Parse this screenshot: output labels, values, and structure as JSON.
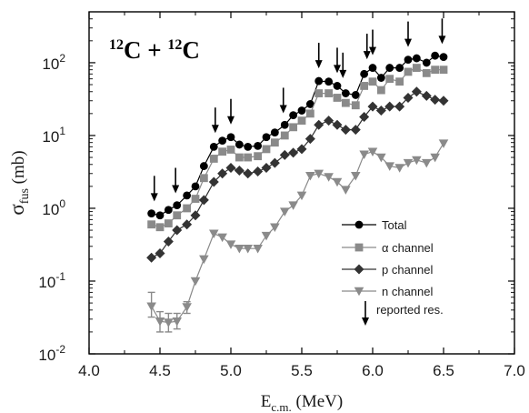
{
  "chart_data": {
    "type": "line",
    "title": "",
    "annotation": {
      "base": "C + ",
      "base2": "C",
      "mass": "12",
      "mass2": "12"
    },
    "xlabel": {
      "main": "E",
      "sub": "c.m.",
      "unit": " (MeV)"
    },
    "ylabel": {
      "main": "σ",
      "sub": "fus",
      "unit": " (mb)"
    },
    "xlim": [
      4.0,
      7.0
    ],
    "ylim": [
      0.01,
      500
    ],
    "yscale": "log",
    "x_ticks": [
      "4.0",
      "4.5",
      "5.0",
      "5.5",
      "6.0",
      "6.5",
      "7.0"
    ],
    "y_ticks": [
      {
        "value": 0.01,
        "base": "10",
        "exp": "-2"
      },
      {
        "value": 0.1,
        "base": "10",
        "exp": "-1"
      },
      {
        "value": 1,
        "base": "10",
        "exp": "0"
      },
      {
        "value": 10,
        "base": "10",
        "exp": "1"
      },
      {
        "value": 100,
        "base": "10",
        "exp": "2"
      }
    ],
    "legend_position": "bottom-right",
    "series": [
      {
        "name": "Total",
        "marker": "circle",
        "color": "#000000",
        "x": [
          4.44,
          4.5,
          4.56,
          4.62,
          4.69,
          4.75,
          4.81,
          4.88,
          4.94,
          5.0,
          5.06,
          5.12,
          5.19,
          5.25,
          5.31,
          5.38,
          5.44,
          5.5,
          5.56,
          5.62,
          5.69,
          5.75,
          5.81,
          5.88,
          5.94,
          6.0,
          6.06,
          6.12,
          6.19,
          6.25,
          6.31,
          6.38,
          6.44,
          6.5
        ],
        "y": [
          0.85,
          0.8,
          0.95,
          1.1,
          1.5,
          2.0,
          3.8,
          7.0,
          8.5,
          9.5,
          7.5,
          7.0,
          7.2,
          9.5,
          11,
          14,
          19,
          22,
          27,
          56,
          55,
          48,
          38,
          36,
          70,
          85,
          62,
          85,
          85,
          110,
          115,
          100,
          125,
          120
        ]
      },
      {
        "name": "α channel",
        "marker": "square",
        "color": "#8a8a8a",
        "x": [
          4.44,
          4.5,
          4.56,
          4.62,
          4.69,
          4.75,
          4.81,
          4.88,
          4.94,
          5.0,
          5.06,
          5.12,
          5.19,
          5.25,
          5.31,
          5.38,
          5.44,
          5.5,
          5.56,
          5.62,
          5.69,
          5.75,
          5.81,
          5.88,
          5.94,
          6.0,
          6.06,
          6.12,
          6.19,
          6.25,
          6.31,
          6.38,
          6.44,
          6.5
        ],
        "y": [
          0.6,
          0.55,
          0.62,
          0.8,
          1.0,
          1.35,
          2.6,
          4.8,
          6.0,
          6.4,
          5.0,
          5.0,
          5.2,
          6.5,
          8.0,
          10,
          13,
          16,
          20,
          38,
          38,
          33,
          28,
          26,
          48,
          55,
          42,
          60,
          55,
          75,
          85,
          72,
          80,
          80
        ]
      },
      {
        "name": "p channel",
        "marker": "diamond",
        "color": "#333333",
        "x": [
          4.44,
          4.5,
          4.56,
          4.62,
          4.69,
          4.75,
          4.81,
          4.88,
          4.94,
          5.0,
          5.06,
          5.12,
          5.19,
          5.25,
          5.31,
          5.38,
          5.44,
          5.5,
          5.56,
          5.62,
          5.69,
          5.75,
          5.81,
          5.88,
          5.94,
          6.0,
          6.06,
          6.12,
          6.19,
          6.25,
          6.31,
          6.38,
          6.44,
          6.5
        ],
        "y": [
          0.21,
          0.24,
          0.35,
          0.5,
          0.6,
          0.8,
          1.3,
          2.3,
          3.0,
          3.6,
          3.3,
          3.0,
          3.2,
          3.6,
          4.2,
          5.4,
          5.8,
          6.5,
          9.0,
          14,
          16,
          14,
          12,
          12,
          18,
          25,
          22,
          25,
          25,
          33,
          40,
          35,
          31,
          30
        ]
      },
      {
        "name": "n channel",
        "marker": "triangle-down",
        "color": "#8a8a8a",
        "x": [
          4.44,
          4.5,
          4.56,
          4.62,
          4.69,
          4.75,
          4.81,
          4.88,
          4.94,
          5.0,
          5.06,
          5.12,
          5.19,
          5.25,
          5.31,
          5.38,
          5.44,
          5.5,
          5.56,
          5.62,
          5.69,
          5.75,
          5.81,
          5.88,
          5.94,
          6.0,
          6.06,
          6.12,
          6.19,
          6.25,
          6.31,
          6.38,
          6.44,
          6.5
        ],
        "y": [
          0.045,
          0.028,
          0.027,
          0.028,
          0.044,
          0.1,
          0.2,
          0.45,
          0.4,
          0.32,
          0.28,
          0.28,
          0.28,
          0.42,
          0.55,
          0.9,
          1.1,
          1.5,
          2.8,
          3.0,
          2.7,
          2.3,
          1.8,
          2.8,
          5.5,
          6.0,
          5.0,
          3.8,
          3.6,
          4.2,
          4.6,
          4.2,
          5.0,
          7.8
        ]
      }
    ],
    "error_bars": [
      {
        "x": 4.44,
        "low": 0.032,
        "high": 0.07
      },
      {
        "x": 4.5,
        "low": 0.02,
        "high": 0.038
      },
      {
        "x": 4.56,
        "low": 0.02,
        "high": 0.036
      },
      {
        "x": 4.62,
        "low": 0.022,
        "high": 0.036
      },
      {
        "x": 4.69,
        "low": 0.036,
        "high": 0.052
      }
    ],
    "resonances": {
      "name": "reported res.",
      "marker": "down-arrow",
      "x": [
        4.46,
        4.61,
        4.89,
        5.0,
        5.37,
        5.62,
        5.75,
        5.79,
        5.96,
        6.0,
        6.25,
        6.49
      ]
    }
  }
}
